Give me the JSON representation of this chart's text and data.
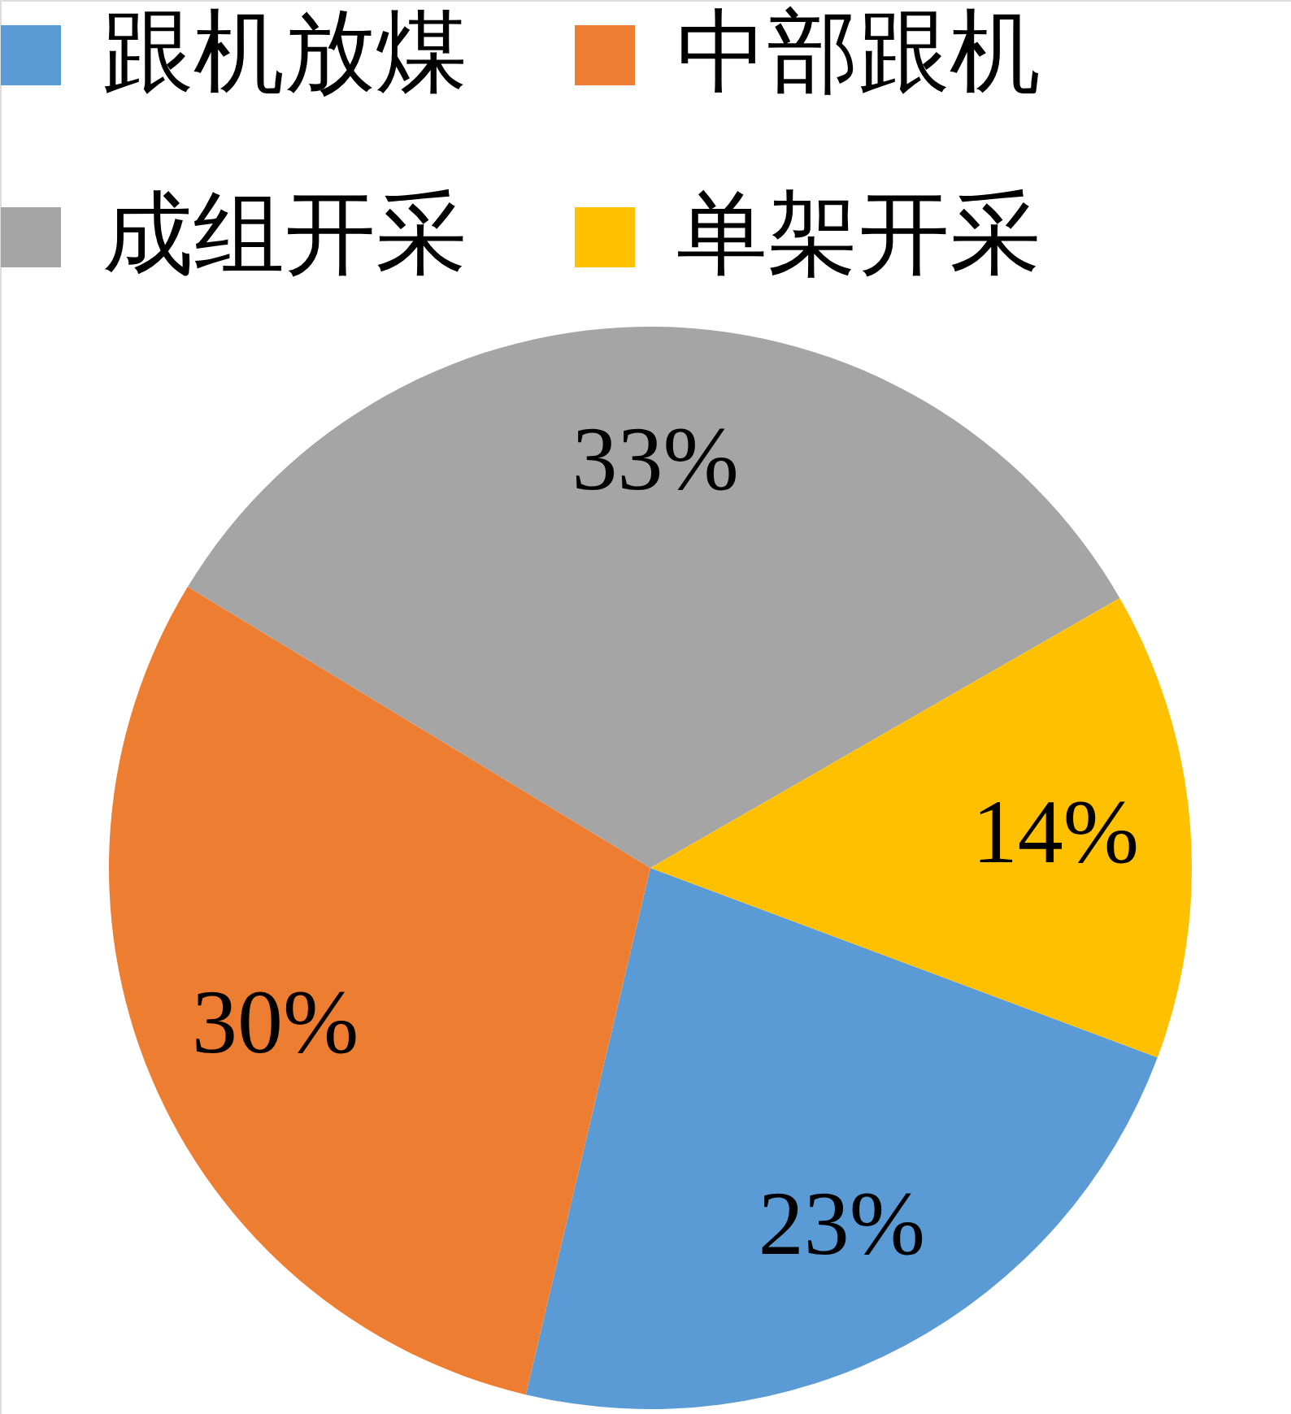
{
  "chart_data": {
    "type": "pie",
    "categories": [
      "跟机放煤",
      "中部跟机",
      "成组开采",
      "单架开采"
    ],
    "values": [
      23,
      30,
      33,
      14
    ],
    "colors": [
      "#5b9bd5",
      "#ed7d31",
      "#a5a5a5",
      "#ffc000"
    ],
    "value_labels": [
      "23%",
      "30%",
      "33%",
      "14%"
    ],
    "legend": "top"
  }
}
